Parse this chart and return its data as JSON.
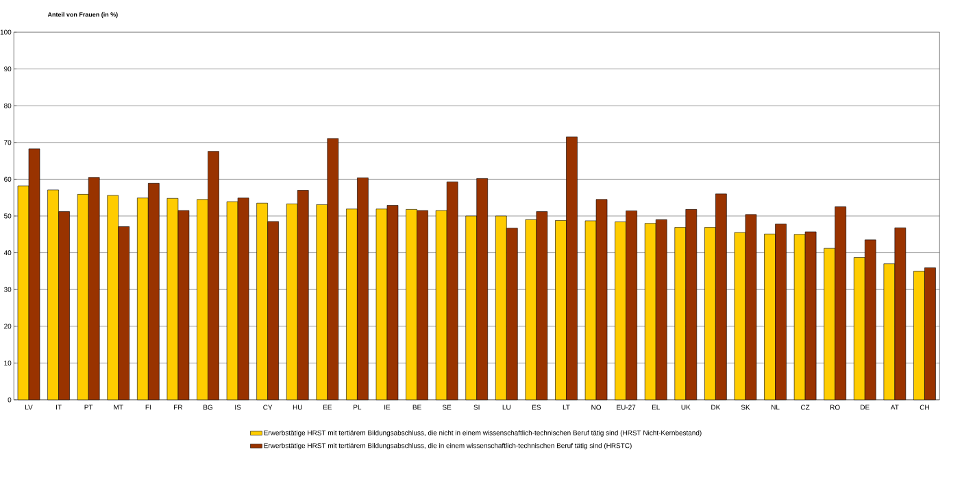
{
  "chart_data": {
    "type": "bar",
    "ylabel": "Anteil von Frauen (in %)",
    "categories": [
      "LV",
      "IT",
      "PT",
      "MT",
      "FI",
      "FR",
      "BG",
      "IS",
      "CY",
      "HU",
      "EE",
      "PL",
      "IE",
      "BE",
      "SE",
      "SI",
      "LU",
      "ES",
      "LT",
      "NO",
      "EU-27",
      "EL",
      "UK",
      "DK",
      "SK",
      "NL",
      "CZ",
      "RO",
      "DE",
      "AT",
      "CH"
    ],
    "series": [
      {
        "name": "Erwerbstätige HRST mit tertiärem Bildungsabschluss, die nicht in einem wissenschaftlich-technischen Beruf tätig sind (HRST Nicht-Kernbestand)",
        "color": "#ffcc00",
        "values": [
          58.2,
          57.1,
          55.9,
          55.6,
          54.9,
          54.8,
          54.5,
          53.9,
          53.5,
          53.3,
          53.1,
          51.9,
          51.9,
          51.8,
          51.5,
          50.0,
          50.0,
          49.0,
          48.8,
          48.7,
          48.4,
          48.0,
          46.9,
          46.9,
          45.5,
          45.1,
          45.0,
          41.2,
          38.7,
          37.0,
          35.0
        ]
      },
      {
        "name": "Erwerbstätige HRST mit tertiärem Bildungsabschluss, die in einem wissenschaftlich-technischen Beruf tätig sind (HRSTC)",
        "color": "#993300",
        "values": [
          68.3,
          51.2,
          60.5,
          47.1,
          58.9,
          51.5,
          67.6,
          54.9,
          48.5,
          57.0,
          71.1,
          60.4,
          52.9,
          51.5,
          59.3,
          60.2,
          46.7,
          51.2,
          71.5,
          54.5,
          51.4,
          49.0,
          51.8,
          56.0,
          50.4,
          47.8,
          45.7,
          52.5,
          43.5,
          46.8,
          35.9
        ]
      }
    ],
    "ylim": [
      0,
      100
    ],
    "yticks": [
      0,
      10,
      20,
      30,
      40,
      50,
      60,
      70,
      80,
      90,
      100
    ],
    "grid": "y",
    "legend": "bottom"
  }
}
